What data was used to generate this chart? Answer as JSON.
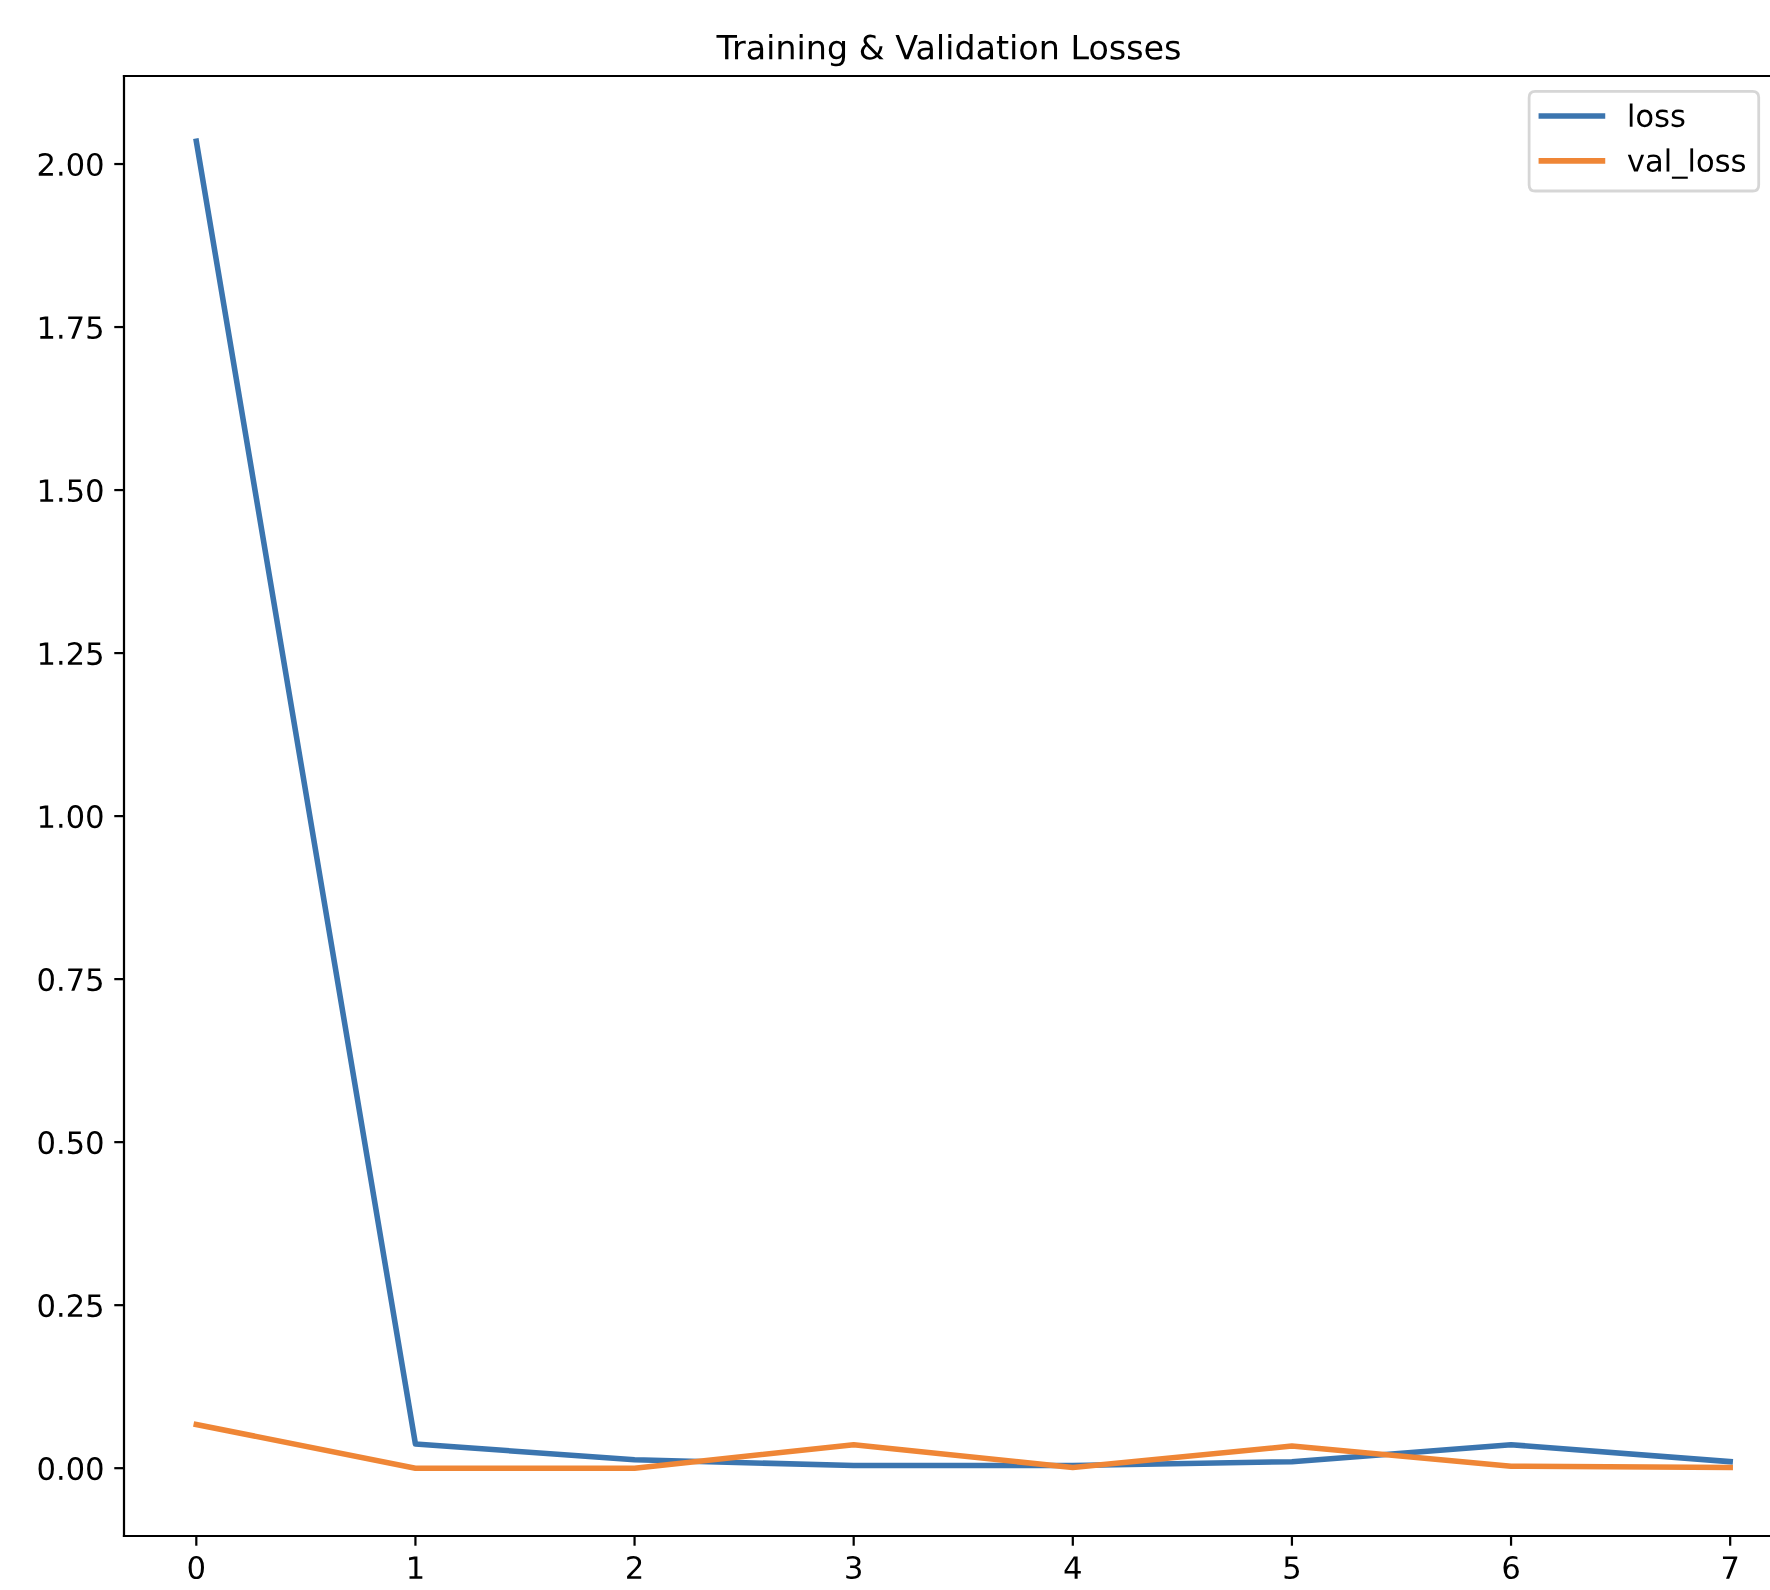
{
  "chart_data": {
    "type": "line",
    "title": "Training & Validation Losses",
    "x": [
      0,
      1,
      2,
      3,
      4,
      5,
      6,
      7
    ],
    "series": [
      {
        "name": "loss",
        "color": "#3b75af",
        "values": [
          2.035,
          0.037,
          0.013,
          0.004,
          0.004,
          0.01,
          0.036,
          0.01
        ]
      },
      {
        "name": "val_loss",
        "color": "#ef8636",
        "values": [
          0.067,
          0.0,
          0.0,
          0.036,
          0.001,
          0.034,
          0.003,
          0.001
        ]
      }
    ],
    "xlim": [
      -0.33,
      7.2
    ],
    "ylim": [
      -0.104,
      2.135
    ],
    "xticks": [
      0,
      1,
      2,
      3,
      4,
      5,
      6,
      7
    ],
    "yticks": [
      {
        "value": 0,
        "label": "0.00"
      },
      {
        "value": 0.25,
        "label": "0.25"
      },
      {
        "value": 0.5,
        "label": "0.50"
      },
      {
        "value": 0.75,
        "label": "0.75"
      },
      {
        "value": 1.0,
        "label": "1.00"
      },
      {
        "value": 1.25,
        "label": "1.25"
      },
      {
        "value": 1.5,
        "label": "1.50"
      },
      {
        "value": 1.75,
        "label": "1.75"
      },
      {
        "value": 2.0,
        "label": "2.00"
      }
    ],
    "legend": "top right",
    "grid": false,
    "marker": "none",
    "line_style": "solid"
  }
}
